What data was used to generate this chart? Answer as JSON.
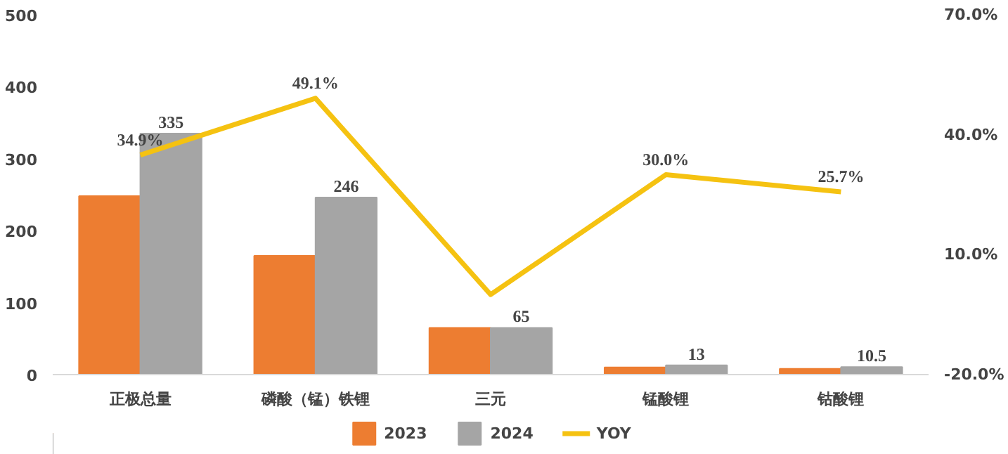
{
  "chart_data": {
    "type": "bar",
    "categories": [
      "正极总量",
      "磷酸（锰）铁锂",
      "三元",
      "锰酸锂",
      "钴酸锂"
    ],
    "series": [
      {
        "name": "2023",
        "color": "#ed7d31",
        "values": [
          248,
          165,
          65,
          10,
          8
        ]
      },
      {
        "name": "2024",
        "color": "#a5a5a5",
        "values": [
          335,
          246,
          65,
          13,
          10.5
        ],
        "value_labels": [
          "335",
          "246",
          "65",
          "13",
          "10.5"
        ]
      },
      {
        "name": "YOY",
        "type": "line",
        "axis": "y2",
        "color": "#f5c211",
        "values": [
          34.9,
          49.1,
          0,
          30.0,
          25.7
        ],
        "value_labels": [
          "34.9%",
          "49.1%",
          null,
          "30.0%",
          "25.7%"
        ]
      }
    ],
    "ylim": [
      0,
      500
    ],
    "yticks": [
      0,
      100,
      200,
      300,
      400,
      500
    ],
    "y2lim": [
      -20,
      70
    ],
    "y2ticks": [
      {
        "value": -20,
        "label": "-20.0%"
      },
      {
        "value": 10,
        "label": "10.0%"
      },
      {
        "value": 40,
        "label": "40.0%"
      },
      {
        "value": 70,
        "label": "70.0%"
      }
    ],
    "grid": false,
    "legend": "bottom",
    "marker": "none",
    "line_style": "solid"
  }
}
